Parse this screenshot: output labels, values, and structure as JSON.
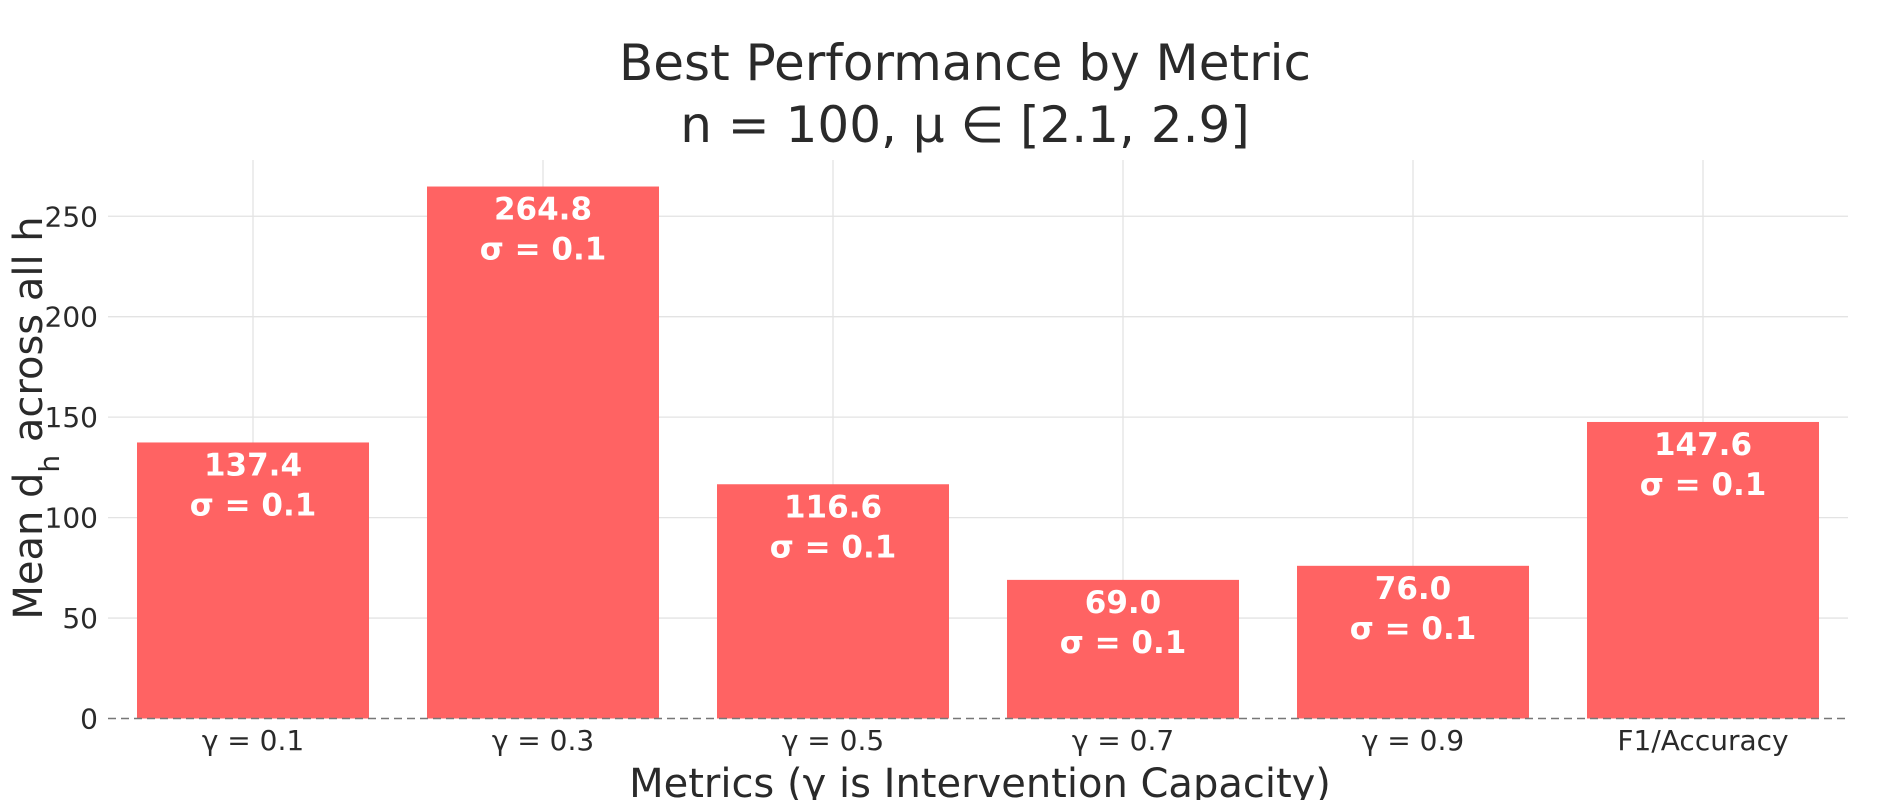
{
  "chart_data": {
    "type": "bar",
    "title": "Best Performance by Metric",
    "subtitle": "n = 100, μ ∈ [2.1, 2.9]",
    "xlabel": "Metrics (γ is Intervention Capacity)",
    "ylabel": "Mean d",
    "ylabel_subscript": "h",
    "ylabel_suffix": " across all h",
    "categories": [
      "γ = 0.1",
      "γ = 0.3",
      "γ = 0.5",
      "γ = 0.7",
      "γ = 0.9",
      "F1/Accuracy"
    ],
    "values": [
      137.4,
      264.8,
      116.6,
      69.0,
      76.0,
      147.6
    ],
    "value_labels": [
      "137.4",
      "264.8",
      "116.6",
      "69.0",
      "76.0",
      "147.6"
    ],
    "sigma_labels": [
      "σ = 0.1",
      "σ = 0.1",
      "σ = 0.1",
      "σ = 0.1",
      "σ = 0.1",
      "σ = 0.1"
    ],
    "yticks": [
      "0",
      "50",
      "100",
      "150",
      "200",
      "250"
    ],
    "ytick_values": [
      0,
      50,
      100,
      150,
      200,
      250
    ],
    "ylim": [
      0,
      278
    ],
    "grid": true,
    "legend": "none",
    "bar_color": "#ff6363"
  }
}
